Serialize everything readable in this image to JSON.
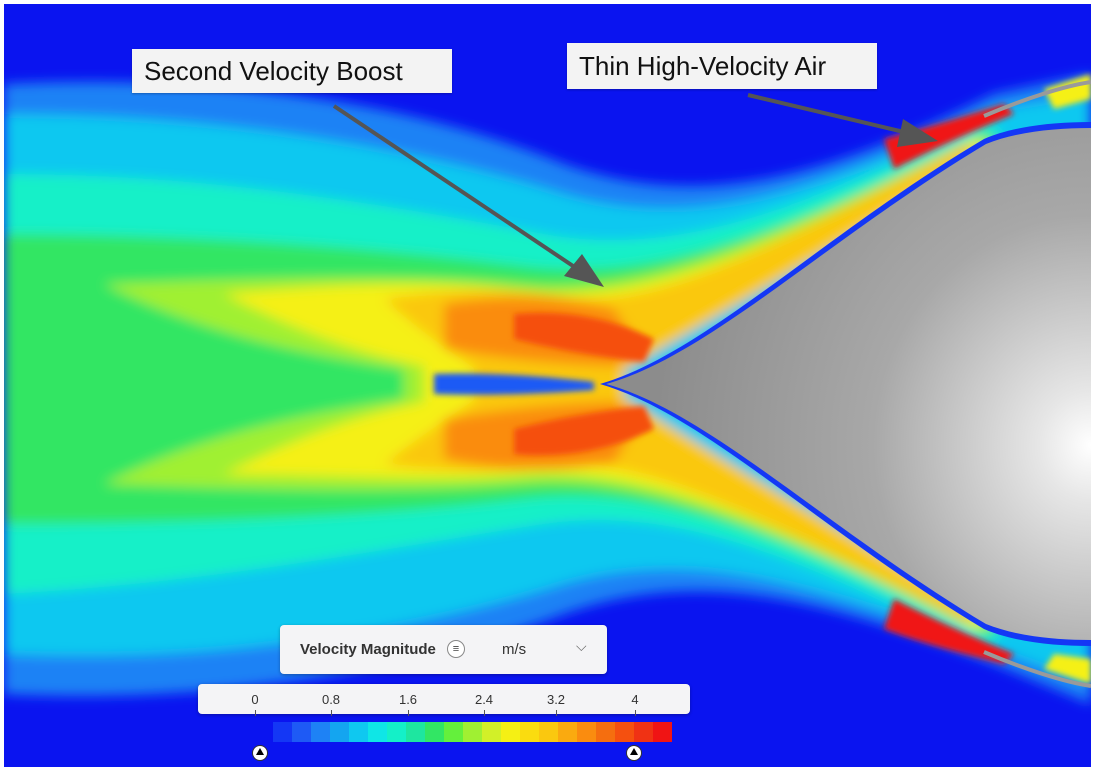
{
  "annotations": {
    "second_velocity_boost": "Second Velocity Boost",
    "thin_high_velocity_air": "Thin High-Velocity Air"
  },
  "legend": {
    "field": "Velocity Magnitude",
    "menu_icon": "menu-lines-icon",
    "unit": "m/s",
    "dropdown_icon": "chevron-down-icon",
    "ticks": [
      "0",
      "0.8",
      "1.6",
      "2.4",
      "3.2",
      "4"
    ],
    "range": [
      0,
      4
    ],
    "colors": [
      "#0a14f0",
      "#1437f5",
      "#1e5af5",
      "#1e82f5",
      "#14a5f0",
      "#0fc8f0",
      "#0fe6e6",
      "#14f0c8",
      "#1ee6a0",
      "#32e664",
      "#64f03c",
      "#a0f032",
      "#d2f028",
      "#f5f014",
      "#fadc0f",
      "#fac80f",
      "#faaa0f",
      "#fa8c0f",
      "#f56e0f",
      "#f5500f",
      "#f03214",
      "#f01414"
    ]
  },
  "colors": {
    "low": "#0a14f0",
    "mid": "#32e664",
    "high": "#f01414",
    "body": "#9a9a9a"
  }
}
